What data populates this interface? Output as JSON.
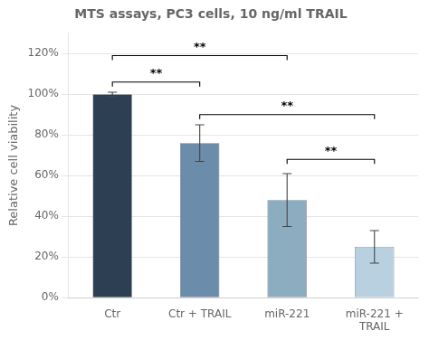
{
  "chart_data": {
    "type": "bar",
    "title": "MTS assays, PC3 cells, 10 ng/ml TRAIL",
    "ylabel": "Relative cell viability",
    "categories": [
      "Ctr",
      "Ctr + TRAIL",
      "miR-221",
      "miR-221 +\nTRAIL"
    ],
    "values": [
      100,
      76,
      48,
      25
    ],
    "errors": [
      1,
      9,
      13,
      8
    ],
    "colors": [
      "#2d3f52",
      "#6b8caa",
      "#8cacc0",
      "#b8d0e0"
    ],
    "ylim": [
      0,
      130
    ],
    "yticks": [
      {
        "value": 0,
        "label": "0%"
      },
      {
        "value": 20,
        "label": "20%"
      },
      {
        "value": 40,
        "label": "40%"
      },
      {
        "value": 60,
        "label": "60%"
      },
      {
        "value": 80,
        "label": "80%"
      },
      {
        "value": 100,
        "label": "100%"
      },
      {
        "value": 120,
        "label": "120%"
      }
    ],
    "grid": true,
    "annotations": [
      {
        "from": "Ctr",
        "to": "Ctr + TRAIL",
        "y": 106,
        "label_y": 107,
        "label": "**"
      },
      {
        "from": "Ctr",
        "to": "miR-221",
        "y": 119,
        "label_y": 120,
        "label": "**"
      },
      {
        "from": "Ctr + TRAIL",
        "to": "miR-221 +\nTRAIL",
        "y": 90,
        "label_y": 91,
        "label": "**"
      },
      {
        "from": "miR-221",
        "to": "miR-221 +\nTRAIL",
        "y": 68,
        "label_y": 69,
        "label": "**"
      }
    ]
  }
}
